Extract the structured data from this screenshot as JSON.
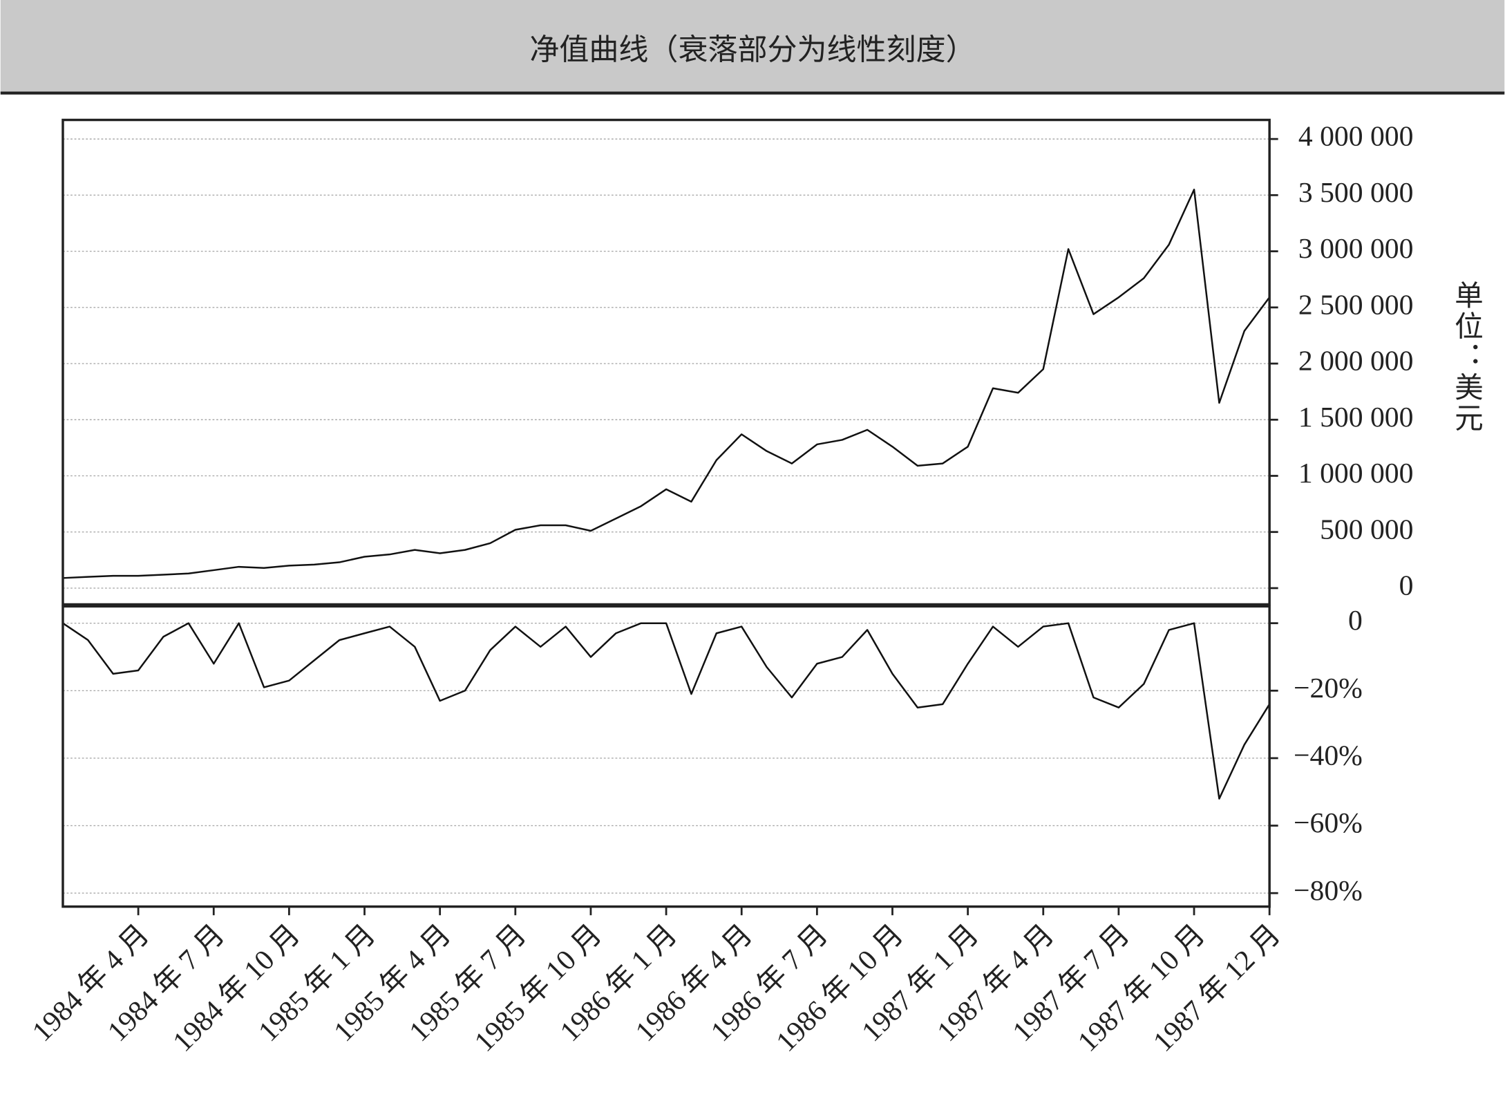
{
  "chart_data": [
    {
      "type": "line",
      "title": "净值曲线（衰落部分为线性刻度）",
      "ylabel": "单位：美元",
      "color": "#111111",
      "grid": true,
      "values": [
        90000,
        100000,
        110000,
        110000,
        120000,
        130000,
        160000,
        190000,
        180000,
        200000,
        210000,
        230000,
        280000,
        300000,
        340000,
        310000,
        340000,
        400000,
        520000,
        560000,
        560000,
        510000,
        620000,
        730000,
        880000,
        770000,
        1140000,
        1370000,
        1220000,
        1110000,
        1280000,
        1320000,
        1410000,
        1260000,
        1090000,
        1110000,
        1260000,
        1780000,
        1740000,
        1950000,
        3020000,
        2440000,
        2590000,
        2760000,
        3060000,
        3550000,
        1650000,
        2290000,
        2590000
      ],
      "ylim": [
        -145000,
        4170000
      ],
      "yticks": [
        0,
        {
          "value": 500000,
          "label": "500 000"
        },
        {
          "value": 1000000,
          "label": "1 000 000"
        },
        {
          "value": 1500000,
          "label": "1 500 000"
        },
        {
          "value": 2000000,
          "label": "2 000 000"
        },
        {
          "value": 2500000,
          "label": "2 500 000"
        },
        {
          "value": 3000000,
          "label": "3 000 000"
        },
        {
          "value": 3500000,
          "label": "3 500 000"
        },
        {
          "value": 4000000,
          "label": "4 000 000"
        }
      ]
    },
    {
      "type": "line",
      "color": "#111111",
      "grid": true,
      "categories": [
        null,
        null,
        null,
        "1984 年 4 月",
        null,
        null,
        "1984 年 7 月",
        null,
        null,
        "1984 年 10 月",
        null,
        null,
        "1985 年 1 月",
        null,
        null,
        "1985 年 4 月",
        null,
        null,
        "1985 年 7 月",
        null,
        null,
        "1985 年 10 月",
        null,
        null,
        "1986 年 1 月",
        null,
        null,
        "1986 年 4 月",
        null,
        null,
        "1986 年 7 月",
        null,
        null,
        "1986 年 10 月",
        null,
        null,
        "1987 年 1 月",
        null,
        null,
        "1987 年 4 月",
        null,
        null,
        "1987 年 7 月",
        null,
        null,
        "1987 年 10 月",
        null,
        null,
        "1987 年 12 月"
      ],
      "values": [
        0,
        -5,
        -15,
        -14,
        -4,
        0,
        -12,
        0,
        -19,
        -17,
        -11,
        -5,
        -3,
        -1,
        -7,
        -23,
        -20,
        -8,
        -1,
        -7,
        -1,
        -10,
        -3,
        0,
        0,
        -21,
        -3,
        -1,
        -13,
        -22,
        -12,
        -10,
        -2,
        -15,
        -25,
        -24,
        -12,
        -1,
        -7,
        -1,
        0,
        -22,
        -25,
        -18,
        -2,
        0,
        -52,
        -36,
        -24
      ],
      "ylim": [
        -84,
        5
      ],
      "yticks": [
        0,
        {
          "value": -20,
          "label": "−20%"
        },
        {
          "value": -40,
          "label": "−40%"
        },
        {
          "value": -60,
          "label": "−60%"
        },
        {
          "value": -80,
          "label": "−80%"
        }
      ]
    }
  ]
}
